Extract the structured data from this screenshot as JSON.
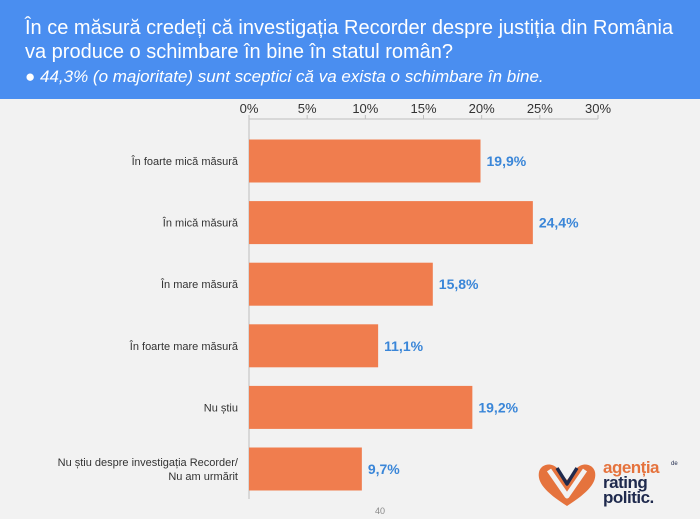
{
  "header": {
    "title": "În ce măsură credeți că investigația Recorder despre justiția din România va produce o schimbare în bine în statul român?",
    "subtitle": "● 44,3% (o majoritate) sunt sceptici că va exista o schimbare în bine."
  },
  "chart_data": {
    "type": "bar",
    "orientation": "horizontal",
    "categories": [
      [
        "În foarte mică măsură"
      ],
      [
        "În mică măsură"
      ],
      [
        "În mare măsură"
      ],
      [
        "În foarte mare măsură"
      ],
      [
        "Nu știu"
      ],
      [
        "Nu știu despre investigația Recorder/",
        "Nu am urmărit"
      ]
    ],
    "values": [
      19.9,
      24.4,
      15.8,
      11.1,
      19.2,
      9.7
    ],
    "value_labels": [
      "19,9%",
      "24,4%",
      "15,8%",
      "11,1%",
      "19,2%",
      "9,7%"
    ],
    "xlim": [
      0,
      30
    ],
    "ticks": [
      0,
      5,
      10,
      15,
      20,
      25,
      30
    ],
    "tick_labels": [
      "0%",
      "5%",
      "10%",
      "15%",
      "20%",
      "25%",
      "30%"
    ],
    "axis_position": "top",
    "grid": false,
    "bar_color": "#f07d4e",
    "label_color": "#3a86d8"
  },
  "logo": {
    "line1": "agenția",
    "small": "de",
    "line2": "rating",
    "line3": "politic.",
    "colors": {
      "orange": "#e5733d",
      "navy": "#1f2a4d"
    }
  },
  "page_number": "40"
}
